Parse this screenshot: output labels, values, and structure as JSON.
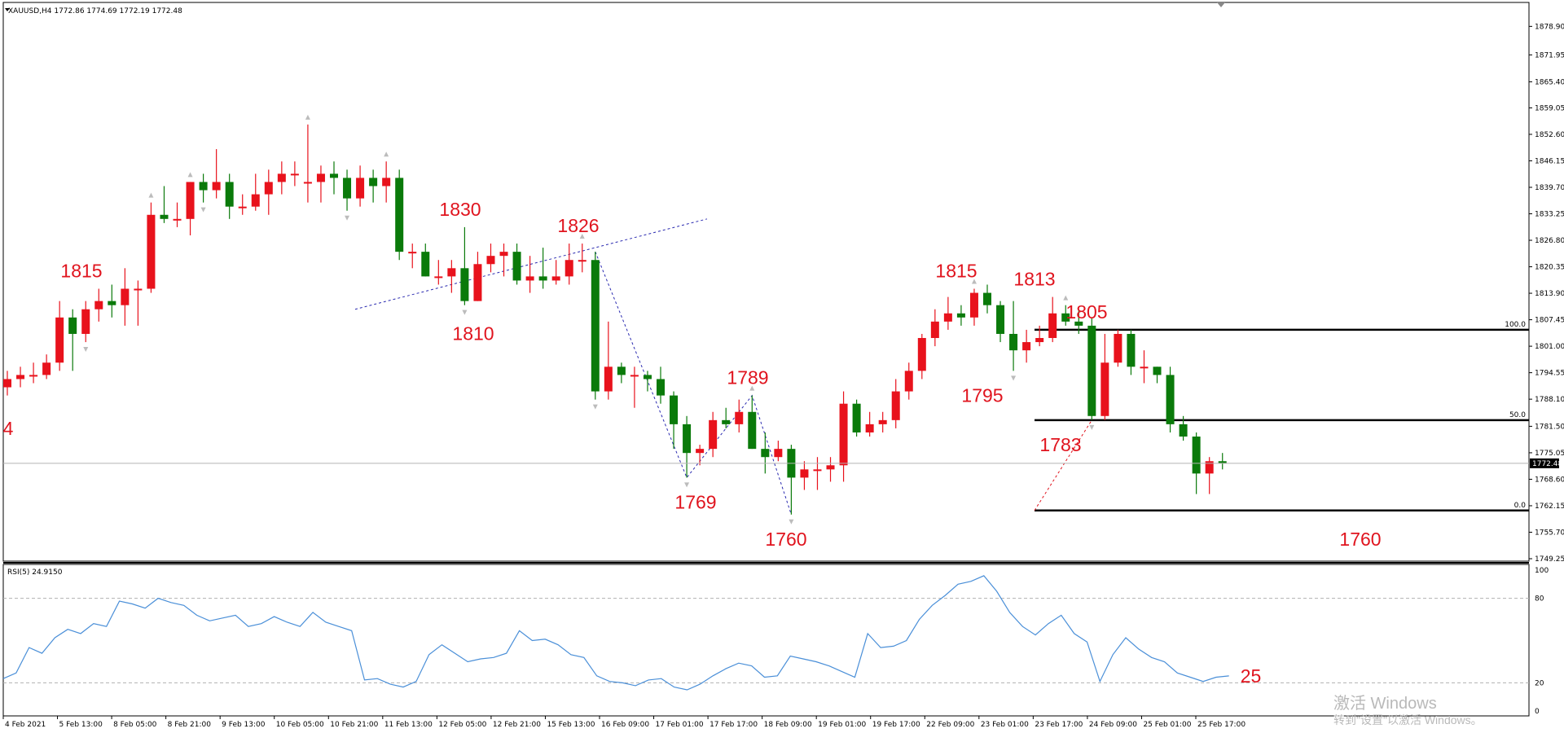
{
  "header": {
    "symbol_info": "XAUUSD,H4  1772.86 1774.69 1772.19 1772.48"
  },
  "rsi_header": "RSI(5) 24.9150",
  "watermark": {
    "line1": "激活 Windows",
    "line2": "转到\"设置\"以激活 Windows。"
  },
  "colors": {
    "bull": "#e8121c",
    "bear": "#0a7a0a",
    "rsi": "#4a8fd8",
    "annotation": "#e0141e",
    "trend": "#2a2ab0"
  },
  "chart_data": [
    {
      "type": "candlestick",
      "title": "XAUUSD,H4",
      "ylim": [
        1749.25,
        1881.55
      ],
      "price_ticks": [
        "1878.90",
        "1871.95",
        "1865.40",
        "1859.05",
        "1852.60",
        "1846.15",
        "1839.70",
        "1833.25",
        "1826.80",
        "1820.35",
        "1813.90",
        "1807.45",
        "1801.00",
        "1794.55",
        "1788.10",
        "1781.50",
        "1775.05",
        "1768.60",
        "1762.15",
        "1755.70",
        "1749.25"
      ],
      "current_price": "1772.48",
      "x_labels": [
        "4 Feb 2021",
        "5 Feb 13:00",
        "8 Feb 05:00",
        "8 Feb 21:00",
        "9 Feb 13:00",
        "10 Feb 05:00",
        "10 Feb 21:00",
        "11 Feb 13:00",
        "12 Feb 05:00",
        "12 Feb 21:00",
        "15 Feb 13:00",
        "16 Feb 09:00",
        "17 Feb 01:00",
        "17 Feb 17:00",
        "18 Feb 09:00",
        "19 Feb 01:00",
        "19 Feb 17:00",
        "22 Feb 09:00",
        "23 Feb 01:00",
        "23 Feb 17:00",
        "24 Feb 09:00",
        "25 Feb 01:00",
        "25 Feb 17:00"
      ],
      "candles": [
        {
          "o": 1791,
          "h": 1795,
          "l": 1789,
          "c": 1793
        },
        {
          "o": 1793,
          "h": 1796,
          "l": 1791,
          "c": 1794
        },
        {
          "o": 1794,
          "h": 1797,
          "l": 1792,
          "c": 1794
        },
        {
          "o": 1794,
          "h": 1799,
          "l": 1793,
          "c": 1797
        },
        {
          "o": 1797,
          "h": 1812,
          "l": 1795,
          "c": 1808
        },
        {
          "o": 1808,
          "h": 1810,
          "l": 1795,
          "c": 1804
        },
        {
          "o": 1804,
          "h": 1812,
          "l": 1802,
          "c": 1810
        },
        {
          "o": 1810,
          "h": 1815,
          "l": 1807,
          "c": 1812
        },
        {
          "o": 1812,
          "h": 1816,
          "l": 1808,
          "c": 1811
        },
        {
          "o": 1811,
          "h": 1820,
          "l": 1806,
          "c": 1815
        },
        {
          "o": 1815,
          "h": 1817,
          "l": 1806,
          "c": 1815
        },
        {
          "o": 1815,
          "h": 1836,
          "l": 1814,
          "c": 1833
        },
        {
          "o": 1833,
          "h": 1840,
          "l": 1831,
          "c": 1832
        },
        {
          "o": 1832,
          "h": 1836,
          "l": 1830,
          "c": 1832
        },
        {
          "o": 1832,
          "h": 1841,
          "l": 1828,
          "c": 1841
        },
        {
          "o": 1841,
          "h": 1843,
          "l": 1836,
          "c": 1839
        },
        {
          "o": 1839,
          "h": 1849,
          "l": 1837,
          "c": 1841
        },
        {
          "o": 1841,
          "h": 1843,
          "l": 1832,
          "c": 1835
        },
        {
          "o": 1835,
          "h": 1838,
          "l": 1833,
          "c": 1835
        },
        {
          "o": 1835,
          "h": 1843,
          "l": 1834,
          "c": 1838
        },
        {
          "o": 1838,
          "h": 1844,
          "l": 1833,
          "c": 1841
        },
        {
          "o": 1841,
          "h": 1846,
          "l": 1838,
          "c": 1843
        },
        {
          "o": 1843,
          "h": 1846,
          "l": 1840,
          "c": 1843
        },
        {
          "o": 1841,
          "h": 1855,
          "l": 1836,
          "c": 1841
        },
        {
          "o": 1841,
          "h": 1845,
          "l": 1836,
          "c": 1843
        },
        {
          "o": 1843,
          "h": 1846,
          "l": 1838,
          "c": 1842
        },
        {
          "o": 1842,
          "h": 1844,
          "l": 1834,
          "c": 1837
        },
        {
          "o": 1837,
          "h": 1845,
          "l": 1835,
          "c": 1842
        },
        {
          "o": 1842,
          "h": 1844,
          "l": 1836,
          "c": 1840
        },
        {
          "o": 1840,
          "h": 1846,
          "l": 1836,
          "c": 1842
        },
        {
          "o": 1842,
          "h": 1844,
          "l": 1822,
          "c": 1824
        },
        {
          "o": 1824,
          "h": 1826,
          "l": 1820,
          "c": 1824
        },
        {
          "o": 1824,
          "h": 1826,
          "l": 1818,
          "c": 1818
        },
        {
          "o": 1818,
          "h": 1822,
          "l": 1816,
          "c": 1818
        },
        {
          "o": 1818,
          "h": 1822,
          "l": 1814,
          "c": 1820
        },
        {
          "o": 1820,
          "h": 1830,
          "l": 1811,
          "c": 1812
        },
        {
          "o": 1812,
          "h": 1824,
          "l": 1812,
          "c": 1821
        },
        {
          "o": 1821,
          "h": 1826,
          "l": 1819,
          "c": 1823
        },
        {
          "o": 1823,
          "h": 1826,
          "l": 1818,
          "c": 1824
        },
        {
          "o": 1824,
          "h": 1826,
          "l": 1816,
          "c": 1817
        },
        {
          "o": 1817,
          "h": 1823,
          "l": 1814,
          "c": 1818
        },
        {
          "o": 1818,
          "h": 1825,
          "l": 1815,
          "c": 1817
        },
        {
          "o": 1817,
          "h": 1822,
          "l": 1816,
          "c": 1818
        },
        {
          "o": 1818,
          "h": 1826,
          "l": 1816,
          "c": 1822
        },
        {
          "o": 1822,
          "h": 1826,
          "l": 1819,
          "c": 1822
        },
        {
          "o": 1822,
          "h": 1824,
          "l": 1788,
          "c": 1790
        },
        {
          "o": 1790,
          "h": 1807,
          "l": 1788,
          "c": 1796
        },
        {
          "o": 1796,
          "h": 1797,
          "l": 1792,
          "c": 1794
        },
        {
          "o": 1794,
          "h": 1796,
          "l": 1786,
          "c": 1794
        },
        {
          "o": 1794,
          "h": 1795,
          "l": 1790,
          "c": 1793
        },
        {
          "o": 1793,
          "h": 1796,
          "l": 1787,
          "c": 1789
        },
        {
          "o": 1789,
          "h": 1790,
          "l": 1776,
          "c": 1782
        },
        {
          "o": 1782,
          "h": 1784,
          "l": 1769,
          "c": 1775
        },
        {
          "o": 1775,
          "h": 1777,
          "l": 1772,
          "c": 1776
        },
        {
          "o": 1776,
          "h": 1785,
          "l": 1774,
          "c": 1783
        },
        {
          "o": 1783,
          "h": 1786,
          "l": 1781,
          "c": 1782
        },
        {
          "o": 1782,
          "h": 1788,
          "l": 1780,
          "c": 1785
        },
        {
          "o": 1785,
          "h": 1789,
          "l": 1776,
          "c": 1776
        },
        {
          "o": 1776,
          "h": 1780,
          "l": 1770,
          "c": 1774
        },
        {
          "o": 1774,
          "h": 1778,
          "l": 1773,
          "c": 1776
        },
        {
          "o": 1776,
          "h": 1777,
          "l": 1760,
          "c": 1769
        },
        {
          "o": 1769,
          "h": 1773,
          "l": 1766,
          "c": 1771
        },
        {
          "o": 1771,
          "h": 1774,
          "l": 1766,
          "c": 1771
        },
        {
          "o": 1771,
          "h": 1774,
          "l": 1768,
          "c": 1772
        },
        {
          "o": 1772,
          "h": 1790,
          "l": 1768,
          "c": 1787
        },
        {
          "o": 1787,
          "h": 1788,
          "l": 1779,
          "c": 1780
        },
        {
          "o": 1780,
          "h": 1785,
          "l": 1779,
          "c": 1782
        },
        {
          "o": 1782,
          "h": 1785,
          "l": 1780,
          "c": 1783
        },
        {
          "o": 1783,
          "h": 1793,
          "l": 1781,
          "c": 1790
        },
        {
          "o": 1790,
          "h": 1797,
          "l": 1788,
          "c": 1795
        },
        {
          "o": 1795,
          "h": 1804,
          "l": 1793,
          "c": 1803
        },
        {
          "o": 1803,
          "h": 1810,
          "l": 1801,
          "c": 1807
        },
        {
          "o": 1807,
          "h": 1813,
          "l": 1805,
          "c": 1809
        },
        {
          "o": 1809,
          "h": 1811,
          "l": 1806,
          "c": 1808
        },
        {
          "o": 1808,
          "h": 1815,
          "l": 1806,
          "c": 1814
        },
        {
          "o": 1814,
          "h": 1816,
          "l": 1809,
          "c": 1811
        },
        {
          "o": 1811,
          "h": 1812,
          "l": 1802,
          "c": 1804
        },
        {
          "o": 1804,
          "h": 1812,
          "l": 1795,
          "c": 1800
        },
        {
          "o": 1800,
          "h": 1805,
          "l": 1797,
          "c": 1802
        },
        {
          "o": 1802,
          "h": 1806,
          "l": 1801,
          "c": 1803
        },
        {
          "o": 1803,
          "h": 1813,
          "l": 1802,
          "c": 1809
        },
        {
          "o": 1809,
          "h": 1811,
          "l": 1806,
          "c": 1807
        },
        {
          "o": 1807,
          "h": 1810,
          "l": 1804,
          "c": 1806
        },
        {
          "o": 1806,
          "h": 1808,
          "l": 1783,
          "c": 1784
        },
        {
          "o": 1784,
          "h": 1804,
          "l": 1783,
          "c": 1797
        },
        {
          "o": 1797,
          "h": 1805,
          "l": 1796,
          "c": 1804
        },
        {
          "o": 1804,
          "h": 1805,
          "l": 1794,
          "c": 1796
        },
        {
          "o": 1796,
          "h": 1800,
          "l": 1792,
          "c": 1796
        },
        {
          "o": 1796,
          "h": 1796,
          "l": 1792,
          "c": 1794
        },
        {
          "o": 1794,
          "h": 1796,
          "l": 1780,
          "c": 1782
        },
        {
          "o": 1782,
          "h": 1784,
          "l": 1778,
          "c": 1779
        },
        {
          "o": 1779,
          "h": 1780,
          "l": 1765,
          "c": 1770
        },
        {
          "o": 1770,
          "h": 1774,
          "l": 1765,
          "c": 1773
        },
        {
          "o": 1773,
          "h": 1775,
          "l": 1771,
          "c": 1772.48
        }
      ],
      "annotations": [
        "1815",
        "1830",
        "1826",
        "1810",
        "1789",
        "1769",
        "1760",
        "1815",
        "1813",
        "1805",
        "1795",
        "1783",
        "1760",
        "4"
      ],
      "fib_levels": [
        {
          "label": "100.0",
          "price": 1805
        },
        {
          "label": "50.0",
          "price": 1783
        },
        {
          "label": "0.0",
          "price": 1761
        }
      ]
    },
    {
      "type": "line",
      "title": "RSI(5) 24.9150",
      "ylim": [
        0,
        100
      ],
      "y_ticks": [
        "100",
        "80",
        "20",
        "0"
      ],
      "levels": [
        80,
        20
      ],
      "values": [
        23,
        27,
        45,
        41,
        52,
        58,
        55,
        62,
        60,
        78,
        76,
        73,
        80,
        77,
        75,
        68,
        64,
        66,
        68,
        60,
        62,
        67,
        63,
        60,
        70,
        63,
        60,
        57,
        22,
        23,
        19,
        17,
        21,
        40,
        47,
        41,
        35,
        37,
        38,
        41,
        57,
        50,
        51,
        47,
        40,
        38,
        25,
        21,
        20,
        18,
        22,
        23,
        17,
        15,
        19,
        25,
        30,
        34,
        32,
        24,
        25,
        39,
        37,
        35,
        32,
        28,
        24,
        55,
        45,
        46,
        50,
        65,
        75,
        82,
        90,
        92,
        96,
        85,
        70,
        60,
        54,
        62,
        68,
        55,
        49,
        21,
        40,
        52,
        44,
        38,
        35,
        27,
        24,
        21,
        24,
        24.9
      ],
      "last_label": "25"
    }
  ]
}
